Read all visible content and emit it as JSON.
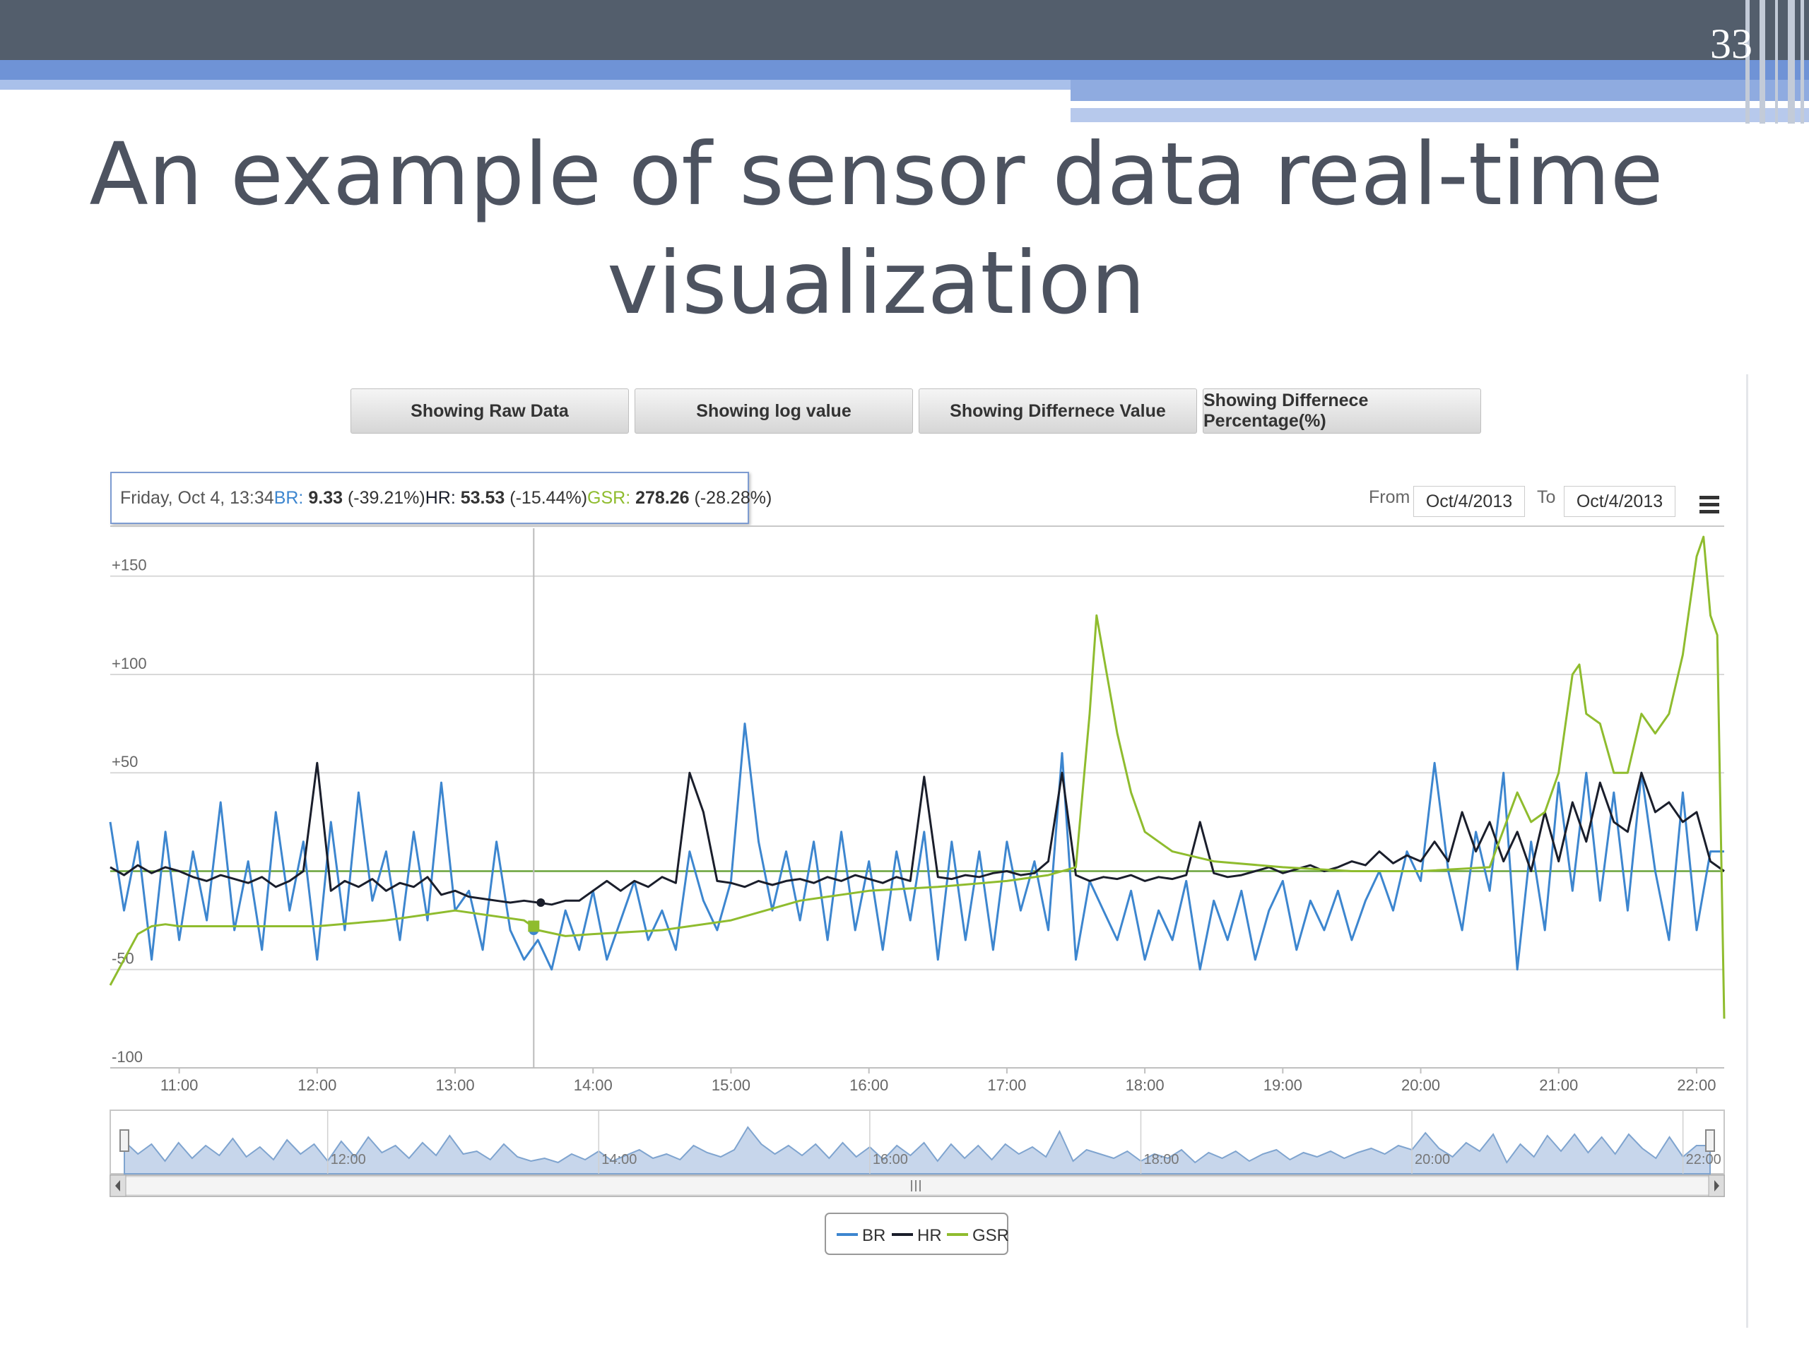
{
  "slide": {
    "number": "33",
    "title": "An example of sensor data real-time visualization"
  },
  "buttons": [
    "Showing Raw Data",
    "Showing log value",
    "Showing Differnece Value",
    "Showing Differnece Percentage(%)"
  ],
  "tooltip": {
    "date": "Friday, Oct 4, 13:34",
    "br_label": "BR:",
    "br_value": "9.33",
    "br_change": "(-39.21%)",
    "hr_label": "HR:",
    "hr_value": "53.53",
    "hr_change": "(-15.44%)",
    "gsr_label": "GSR:",
    "gsr_value": "278.26",
    "gsr_change": "(-28.28%)"
  },
  "range_selector": {
    "from_label": "From",
    "from_value": "Oct/4/2013",
    "to_label": "To",
    "to_value": "Oct/4/2013",
    "menu_icon": "hamburger-icon"
  },
  "chart_data": {
    "type": "line",
    "title": "",
    "xlabel": "",
    "ylabel": "",
    "ylim": [
      -100,
      170
    ],
    "xlim": [
      10.5,
      22.2
    ],
    "y_ticks": [
      "+150",
      "+100",
      "+50",
      "-50",
      "-100"
    ],
    "y_tick_values": [
      150,
      100,
      50,
      -50,
      -100
    ],
    "x_ticks": [
      "11:00",
      "12:00",
      "13:00",
      "14:00",
      "15:00",
      "16:00",
      "17:00",
      "18:00",
      "19:00",
      "20:00",
      "21:00",
      "22:00"
    ],
    "x_tick_values": [
      11,
      12,
      13,
      14,
      15,
      16,
      17,
      18,
      19,
      20,
      21,
      22
    ],
    "crosshair_x": 13.57,
    "grid": true,
    "legend_position": "bottom-center",
    "series": [
      {
        "name": "BR",
        "color": "#3d86cf",
        "x": [
          10.5,
          10.6,
          10.7,
          10.8,
          10.9,
          11.0,
          11.1,
          11.2,
          11.3,
          11.4,
          11.5,
          11.6,
          11.7,
          11.8,
          11.9,
          12.0,
          12.1,
          12.2,
          12.3,
          12.4,
          12.5,
          12.6,
          12.7,
          12.8,
          12.9,
          13.0,
          13.1,
          13.2,
          13.3,
          13.4,
          13.5,
          13.6,
          13.7,
          13.8,
          13.9,
          14.0,
          14.1,
          14.2,
          14.3,
          14.4,
          14.5,
          14.6,
          14.7,
          14.8,
          14.9,
          15.0,
          15.1,
          15.2,
          15.3,
          15.4,
          15.5,
          15.6,
          15.7,
          15.8,
          15.9,
          16.0,
          16.1,
          16.2,
          16.3,
          16.4,
          16.5,
          16.6,
          16.7,
          16.8,
          16.9,
          17.0,
          17.1,
          17.2,
          17.3,
          17.4,
          17.5,
          17.6,
          17.7,
          17.8,
          17.9,
          18.0,
          18.1,
          18.2,
          18.3,
          18.4,
          18.5,
          18.6,
          18.7,
          18.8,
          18.9,
          19.0,
          19.1,
          19.2,
          19.3,
          19.4,
          19.5,
          19.6,
          19.7,
          19.8,
          19.9,
          20.0,
          20.1,
          20.2,
          20.3,
          20.4,
          20.5,
          20.6,
          20.7,
          20.8,
          20.9,
          21.0,
          21.1,
          21.2,
          21.3,
          21.4,
          21.5,
          21.6,
          21.7,
          21.8,
          21.9,
          22.0,
          22.1,
          22.2
        ],
        "values": [
          25,
          -20,
          15,
          -45,
          20,
          -35,
          10,
          -25,
          35,
          -30,
          5,
          -40,
          30,
          -20,
          15,
          -45,
          25,
          -30,
          40,
          -15,
          10,
          -35,
          20,
          -25,
          45,
          -20,
          -10,
          -40,
          15,
          -30,
          -45,
          -35,
          -50,
          -20,
          -40,
          -10,
          -45,
          -25,
          -5,
          -35,
          -20,
          -40,
          10,
          -15,
          -30,
          -5,
          75,
          15,
          -20,
          10,
          -25,
          15,
          -35,
          20,
          -30,
          5,
          -40,
          10,
          -25,
          20,
          -45,
          15,
          -35,
          10,
          -40,
          15,
          -20,
          5,
          -30,
          60,
          -45,
          -5,
          -20,
          -35,
          -10,
          -45,
          -20,
          -35,
          -5,
          -50,
          -15,
          -35,
          -10,
          -45,
          -20,
          -5,
          -40,
          -15,
          -30,
          -10,
          -35,
          -15,
          0,
          -20,
          10,
          -5,
          55,
          0,
          -30,
          20,
          -10,
          50,
          -50,
          15,
          -30,
          45,
          -10,
          50,
          -15,
          40,
          -20,
          50,
          0,
          -35,
          40,
          -30,
          10,
          10
        ],
        "secondary": true
      },
      {
        "name": "HR",
        "color": "#1a1e2b",
        "x": [
          10.5,
          10.6,
          10.7,
          10.8,
          10.9,
          11.0,
          11.1,
          11.2,
          11.3,
          11.4,
          11.5,
          11.6,
          11.7,
          11.8,
          11.9,
          12.0,
          12.1,
          12.2,
          12.3,
          12.4,
          12.5,
          12.6,
          12.7,
          12.8,
          12.9,
          13.0,
          13.1,
          13.2,
          13.3,
          13.4,
          13.5,
          13.6,
          13.7,
          13.8,
          13.9,
          14.0,
          14.1,
          14.2,
          14.3,
          14.4,
          14.5,
          14.6,
          14.7,
          14.8,
          14.9,
          15.0,
          15.1,
          15.2,
          15.3,
          15.4,
          15.5,
          15.6,
          15.7,
          15.8,
          15.9,
          16.0,
          16.1,
          16.2,
          16.3,
          16.4,
          16.5,
          16.6,
          16.7,
          16.8,
          16.9,
          17.0,
          17.1,
          17.2,
          17.3,
          17.4,
          17.5,
          17.6,
          17.7,
          17.8,
          17.9,
          18.0,
          18.1,
          18.2,
          18.3,
          18.4,
          18.5,
          18.6,
          18.7,
          18.8,
          18.9,
          19.0,
          19.1,
          19.2,
          19.3,
          19.4,
          19.5,
          19.6,
          19.7,
          19.8,
          19.9,
          20.0,
          20.1,
          20.2,
          20.3,
          20.4,
          20.5,
          20.6,
          20.7,
          20.8,
          20.9,
          21.0,
          21.1,
          21.2,
          21.3,
          21.4,
          21.5,
          21.6,
          21.7,
          21.8,
          21.9,
          22.0,
          22.1,
          22.2
        ],
        "values": [
          2,
          -2,
          3,
          -1,
          2,
          0,
          -3,
          -5,
          -2,
          -4,
          -6,
          -3,
          -8,
          -5,
          0,
          55,
          -10,
          -5,
          -8,
          -4,
          -10,
          -6,
          -8,
          -3,
          -12,
          -10,
          -13,
          -14,
          -15,
          -16,
          -15,
          -16,
          -17,
          -15,
          -15,
          -10,
          -5,
          -10,
          -5,
          -8,
          -3,
          -6,
          50,
          30,
          -5,
          -6,
          -8,
          -5,
          -7,
          -5,
          -4,
          -6,
          -3,
          -5,
          -2,
          -4,
          -6,
          -3,
          -5,
          48,
          -3,
          -4,
          -2,
          -3,
          -1,
          0,
          -2,
          -1,
          5,
          50,
          -2,
          -5,
          -3,
          -4,
          -2,
          -5,
          -3,
          -4,
          -2,
          25,
          -1,
          -3,
          -2,
          0,
          2,
          -1,
          1,
          3,
          0,
          2,
          5,
          3,
          10,
          4,
          8,
          5,
          15,
          5,
          30,
          10,
          25,
          5,
          20,
          0,
          30,
          5,
          35,
          15,
          45,
          25,
          20,
          50,
          30,
          35,
          25,
          30,
          5,
          0
        ],
        "secondary": false
      },
      {
        "name": "GSR",
        "color": "#8fbc2e",
        "x": [
          10.5,
          10.6,
          10.7,
          10.8,
          10.9,
          11.0,
          11.5,
          12.0,
          12.5,
          13.0,
          13.5,
          13.6,
          13.8,
          14.0,
          14.5,
          15.0,
          15.5,
          16.0,
          16.5,
          17.0,
          17.3,
          17.5,
          17.6,
          17.65,
          17.7,
          17.8,
          17.9,
          18.0,
          18.2,
          18.5,
          19.0,
          19.5,
          20.0,
          20.5,
          20.7,
          20.8,
          20.9,
          21.0,
          21.1,
          21.15,
          21.2,
          21.3,
          21.4,
          21.5,
          21.6,
          21.7,
          21.8,
          21.9,
          22.0,
          22.05,
          22.1,
          22.15,
          22.2
        ],
        "values": [
          -58,
          -45,
          -32,
          -28,
          -27,
          -28,
          -28,
          -28,
          -25,
          -20,
          -25,
          -30,
          -33,
          -32,
          -30,
          -25,
          -15,
          -10,
          -8,
          -5,
          -2,
          2,
          80,
          130,
          110,
          70,
          40,
          20,
          10,
          5,
          2,
          0,
          0,
          2,
          40,
          25,
          30,
          50,
          100,
          105,
          80,
          75,
          50,
          50,
          80,
          70,
          80,
          110,
          160,
          170,
          130,
          120,
          -75
        ],
        "secondary": false
      }
    ],
    "tooltip_marker_x": 13.57
  }
}
